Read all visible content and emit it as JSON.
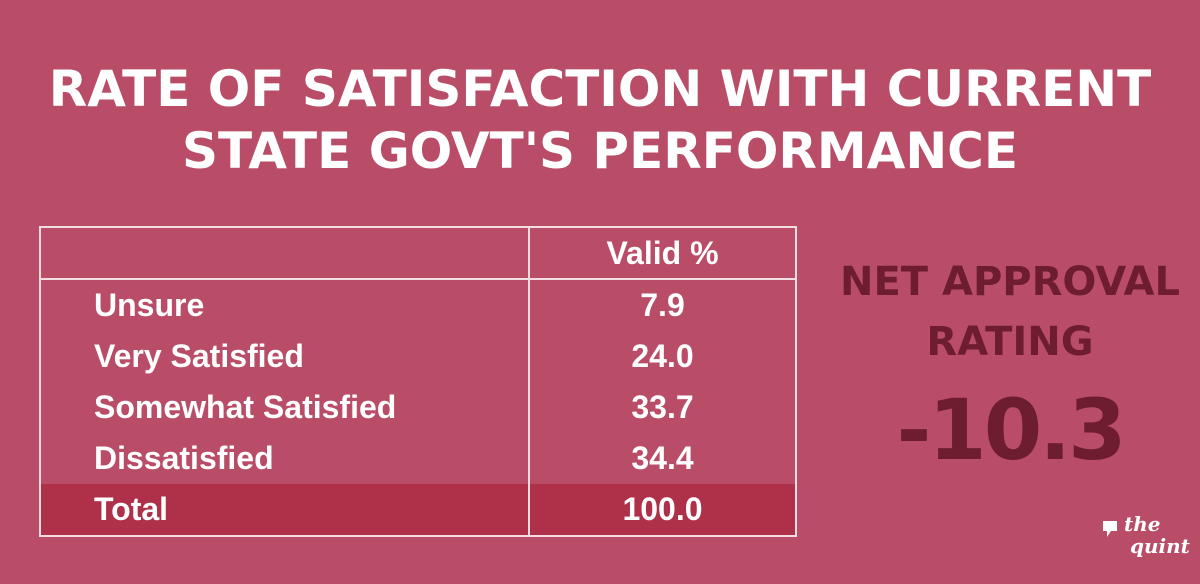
{
  "chart_data": {
    "type": "table",
    "title_lines": [
      "RATE OF SATISFACTION WITH CURRENT",
      "STATE GOVT'S PERFORMANCE"
    ],
    "columns": [
      "",
      "Valid %"
    ],
    "rows": [
      {
        "label": "Unsure",
        "value": "7.9"
      },
      {
        "label": "Very Satisfied",
        "value": "24.0"
      },
      {
        "label": "Somewhat Satisfied",
        "value": "33.7"
      },
      {
        "label": "Dissatisfied",
        "value": "34.4"
      },
      {
        "label": "Total",
        "value": "100.0"
      }
    ]
  },
  "net_approval": {
    "label_line1": "NET APPROVAL",
    "label_line2": "RATING",
    "value": "-10.3"
  },
  "logo": {
    "word1": "the",
    "word2": "quint"
  },
  "colors": {
    "background": "#b94d68",
    "total_row": "#ae3049",
    "net_approval_text": "#6e1d31",
    "border": "#f3dde3"
  }
}
